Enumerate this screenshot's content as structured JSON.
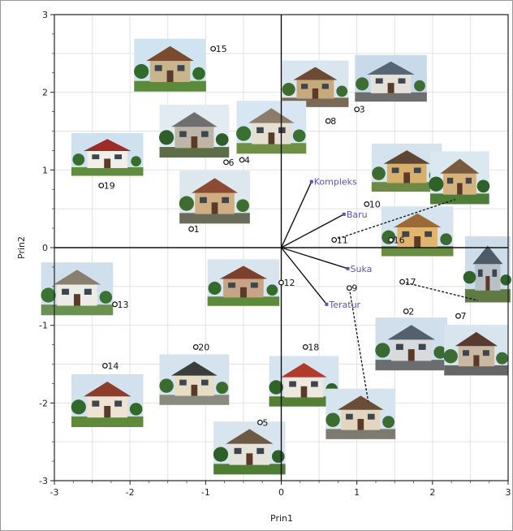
{
  "chart_data": {
    "type": "scatter",
    "xlabel": "Prin1",
    "ylabel": "Prin2",
    "xlim": [
      -3,
      3
    ],
    "ylim": [
      -3,
      3
    ],
    "grid": true,
    "xticks": [
      "-3",
      "-2",
      "-1",
      "0",
      "1",
      "2",
      "3"
    ],
    "yticks": [
      "-3",
      "-2",
      "-1",
      "0",
      "1",
      "2",
      "3"
    ],
    "points": [
      {
        "label": "1",
        "x": -1.19,
        "y": 0.24
      },
      {
        "label": "2",
        "x": 1.65,
        "y": -0.82
      },
      {
        "label": "3",
        "x": 1.0,
        "y": 1.78
      },
      {
        "label": "4",
        "x": -0.52,
        "y": 1.13
      },
      {
        "label": "5",
        "x": -0.28,
        "y": -2.25
      },
      {
        "label": "6",
        "x": -0.73,
        "y": 1.1
      },
      {
        "label": "7",
        "x": 2.34,
        "y": -0.88
      },
      {
        "label": "8",
        "x": 0.62,
        "y": 1.63
      },
      {
        "label": "9",
        "x": 0.9,
        "y": -0.52
      },
      {
        "label": "10",
        "x": 1.13,
        "y": 0.56
      },
      {
        "label": "11",
        "x": 0.7,
        "y": 0.1
      },
      {
        "label": "12",
        "x": 0.0,
        "y": -0.45
      },
      {
        "label": "13",
        "x": -2.2,
        "y": -0.73
      },
      {
        "label": "14",
        "x": -2.33,
        "y": -1.52
      },
      {
        "label": "15",
        "x": -0.9,
        "y": 2.56
      },
      {
        "label": "16",
        "x": 1.45,
        "y": 0.1
      },
      {
        "label": "17",
        "x": 1.6,
        "y": -0.44
      },
      {
        "label": "18",
        "x": 0.32,
        "y": -1.28
      },
      {
        "label": "19",
        "x": -2.38,
        "y": 0.8
      },
      {
        "label": "20",
        "x": -1.13,
        "y": -1.28
      }
    ],
    "vectors": [
      {
        "label": "Kompleks",
        "x": 0.4,
        "y": 0.85
      },
      {
        "label": "Baru",
        "x": 0.83,
        "y": 0.43
      },
      {
        "label": "Suka",
        "x": 0.88,
        "y": -0.27
      },
      {
        "label": "Teratur",
        "x": 0.6,
        "y": -0.73
      }
    ],
    "leaders": [
      {
        "from": [
          0.7,
          0.1
        ],
        "to": [
          2.3,
          0.62
        ]
      },
      {
        "from": [
          1.6,
          -0.44
        ],
        "to": [
          2.6,
          -0.68
        ]
      },
      {
        "from": [
          0.9,
          -0.52
        ],
        "to": [
          1.15,
          -1.98
        ]
      }
    ],
    "photos": [
      {
        "cx": -1.47,
        "cy": 2.35,
        "w": 0.95,
        "h": 0.68,
        "roof": "#7a4b2e",
        "wall": "#c9b58c",
        "sky": "#cfe3f1",
        "ground": "#5b8a3a",
        "tree": "#2f6b2a"
      },
      {
        "cx": 0.45,
        "cy": 2.11,
        "w": 0.88,
        "h": 0.6,
        "roof": "#6d4a33",
        "wall": "#c7aa7c",
        "sky": "#d9e6ef",
        "ground": "#7a6a55",
        "tree": "#3d6d2e"
      },
      {
        "cx": 1.45,
        "cy": 2.18,
        "w": 0.95,
        "h": 0.6,
        "roof": "#556677",
        "wall": "#e5e1da",
        "sky": "#c8d9ea",
        "ground": "#6e6e6e",
        "tree": "#3b6d34"
      },
      {
        "cx": -1.15,
        "cy": 1.5,
        "w": 0.92,
        "h": 0.68,
        "roof": "#6f6f6f",
        "wall": "#bdb6a8",
        "sky": "#e2ebf2",
        "ground": "#5d6d45",
        "tree": "#2e5e29"
      },
      {
        "cx": -0.13,
        "cy": 1.55,
        "w": 0.92,
        "h": 0.68,
        "roof": "#8c7d6a",
        "wall": "#e6e0d2",
        "sky": "#d7e6f2",
        "ground": "#6f8f47",
        "tree": "#3a7030"
      },
      {
        "cx": -2.3,
        "cy": 1.2,
        "w": 0.95,
        "h": 0.55,
        "roof": "#9a2d25",
        "wall": "#f2efe8",
        "sky": "#cfe0ef",
        "ground": "#5f8e3c",
        "tree": "#356e2f"
      },
      {
        "cx": 1.66,
        "cy": 1.03,
        "w": 0.93,
        "h": 0.62,
        "roof": "#5e4634",
        "wall": "#d7b06b",
        "sky": "#d5e3ee",
        "ground": "#6c8a44",
        "tree": "#3c6b2f"
      },
      {
        "cx": 2.36,
        "cy": 0.9,
        "w": 0.78,
        "h": 0.68,
        "roof": "#7a5a3e",
        "wall": "#d5b27e",
        "sky": "#dbe8f0",
        "ground": "#4f7d39",
        "tree": "#2f622b"
      },
      {
        "cx": -0.88,
        "cy": 0.65,
        "w": 0.93,
        "h": 0.68,
        "roof": "#8b4a34",
        "wall": "#cfae84",
        "sky": "#dde7ee",
        "ground": "#6b6b5a",
        "tree": "#3e6c31"
      },
      {
        "cx": 1.8,
        "cy": 0.21,
        "w": 0.95,
        "h": 0.64,
        "roof": "#9b6a36",
        "wall": "#e2b56f",
        "sky": "#d6e4ef",
        "ground": "#6a8d44",
        "tree": "#3b6c2f"
      },
      {
        "cx": 2.73,
        "cy": -0.28,
        "w": 0.6,
        "h": 0.85,
        "roof": "#4d5b68",
        "wall": "#b9c1c8",
        "sky": "#cedde9",
        "ground": "#5f7a45",
        "tree": "#2f632c"
      },
      {
        "cx": -0.5,
        "cy": -0.45,
        "w": 0.95,
        "h": 0.6,
        "roof": "#7b3f2c",
        "wall": "#c7a485",
        "sky": "#d9e5ee",
        "ground": "#5d8a3b",
        "tree": "#336b2d"
      },
      {
        "cx": -2.7,
        "cy": -0.53,
        "w": 0.95,
        "h": 0.68,
        "roof": "#8a7e6d",
        "wall": "#ecebe6",
        "sky": "#cfe0ec",
        "ground": "#6a9150",
        "tree": "#3a7332"
      },
      {
        "cx": 1.72,
        "cy": -1.24,
        "w": 0.95,
        "h": 0.68,
        "roof": "#54606d",
        "wall": "#d9dadc",
        "sky": "#d0dfeb",
        "ground": "#6b6e70",
        "tree": "#3a6a31"
      },
      {
        "cx": 2.58,
        "cy": -1.32,
        "w": 0.85,
        "h": 0.65,
        "roof": "#5a3a2e",
        "wall": "#c9b8a2",
        "sky": "#d8e5ef",
        "ground": "#666666",
        "tree": "#3c6c33"
      },
      {
        "cx": -1.15,
        "cy": -1.7,
        "w": 0.92,
        "h": 0.65,
        "roof": "#3d3d3d",
        "wall": "#e8dcc4",
        "sky": "#d4e3ee",
        "ground": "#8a8a7e",
        "tree": "#3a6b2f"
      },
      {
        "cx": 0.3,
        "cy": -1.72,
        "w": 0.92,
        "h": 0.65,
        "roof": "#b03a2c",
        "wall": "#efe8de",
        "sky": "#d5e4ef",
        "ground": "#557f35",
        "tree": "#2f6429"
      },
      {
        "cx": 1.05,
        "cy": -2.14,
        "w": 0.92,
        "h": 0.65,
        "roof": "#6a4d37",
        "wall": "#e3d5bf",
        "sky": "#d6e4ef",
        "ground": "#7d7a6f",
        "tree": "#3b6c30"
      },
      {
        "cx": -2.3,
        "cy": -1.97,
        "w": 0.95,
        "h": 0.68,
        "roof": "#8c3e2b",
        "wall": "#efe4d4",
        "sky": "#d2e1ed",
        "ground": "#5e8a3a",
        "tree": "#2f6a2a"
      },
      {
        "cx": -0.42,
        "cy": -2.58,
        "w": 0.95,
        "h": 0.68,
        "roof": "#6c5a45",
        "wall": "#e6e3da",
        "sky": "#d8e5ee",
        "ground": "#4e7d34",
        "tree": "#2d5f28"
      }
    ]
  }
}
